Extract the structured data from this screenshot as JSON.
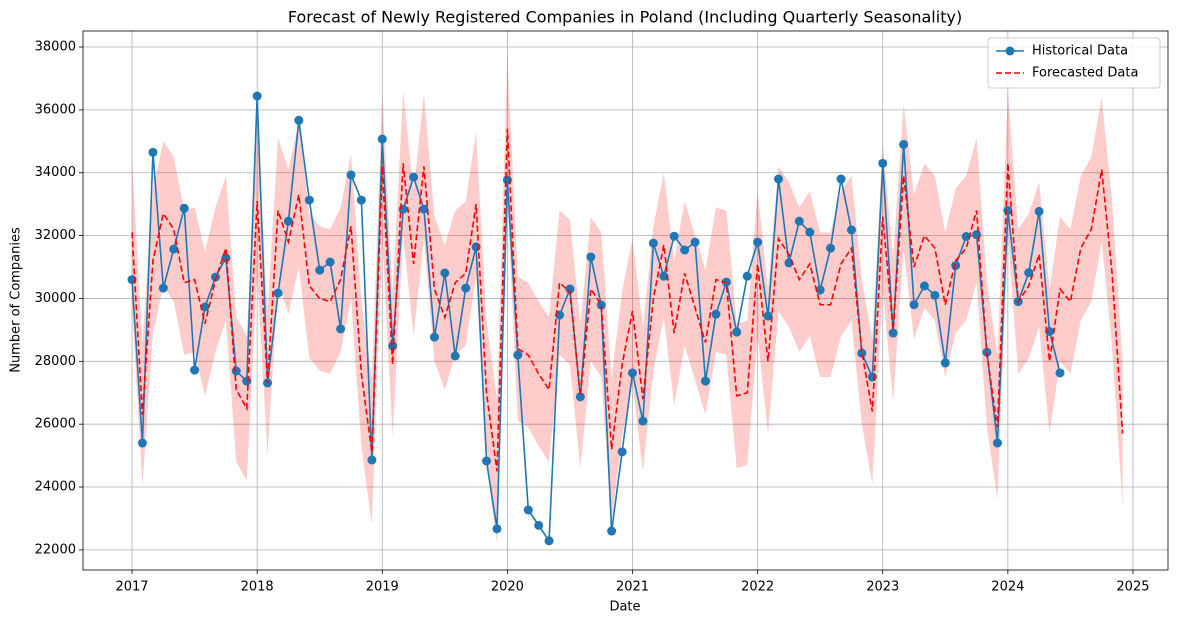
{
  "chart_data": {
    "type": "line",
    "title": "Forecast of Newly Registered Companies in Poland (Including Quarterly Seasonality)",
    "xlabel": "Date",
    "ylabel": "Number of Companies",
    "x": [
      2017,
      2017.083,
      2017.167,
      2017.25,
      2017.333,
      2017.417,
      2017.5,
      2017.583,
      2017.667,
      2017.75,
      2017.833,
      2017.917,
      2018,
      2018.083,
      2018.167,
      2018.25,
      2018.333,
      2018.417,
      2018.5,
      2018.583,
      2018.667,
      2018.75,
      2018.833,
      2018.917,
      2019,
      2019.083,
      2019.167,
      2019.25,
      2019.333,
      2019.417,
      2019.5,
      2019.583,
      2019.667,
      2019.75,
      2019.833,
      2019.917,
      2020,
      2020.083,
      2020.167,
      2020.25,
      2020.333,
      2020.417,
      2020.5,
      2020.583,
      2020.667,
      2020.75,
      2020.833,
      2020.917,
      2021,
      2021.083,
      2021.167,
      2021.25,
      2021.333,
      2021.417,
      2021.5,
      2021.583,
      2021.667,
      2021.75,
      2021.833,
      2021.917,
      2022,
      2022.083,
      2022.167,
      2022.25,
      2022.333,
      2022.417,
      2022.5,
      2022.583,
      2022.667,
      2022.75,
      2022.833,
      2022.917,
      2023,
      2023.083,
      2023.167,
      2023.25,
      2023.333,
      2023.417,
      2023.5,
      2023.583,
      2023.667,
      2023.75,
      2023.833,
      2023.917,
      2024,
      2024.083,
      2024.167,
      2024.25,
      2024.333,
      2024.417,
      2024.5,
      2024.583,
      2024.667,
      2024.75,
      2024.833,
      2024.917
    ],
    "series": [
      {
        "name": "Historical Data",
        "color": "#1f77b4",
        "linestyle": "solid",
        "marker": "o",
        "values": [
          30600,
          25400,
          34650,
          30330,
          31570,
          32870,
          27720,
          29730,
          30680,
          31290,
          27690,
          27370,
          36440,
          27310,
          30170,
          32460,
          35670,
          33130,
          30900,
          31160,
          29030,
          33930,
          33130,
          24860,
          35070,
          28490,
          32840,
          33860,
          32840,
          28770,
          30810,
          28170,
          30330,
          31640,
          24830,
          22670,
          33770,
          28200,
          23270,
          22780,
          22290,
          29470,
          30300,
          26870,
          31320,
          29790,
          22600,
          25120,
          27630,
          26100,
          31760,
          30710,
          31980,
          31540,
          31790,
          27370,
          29500,
          30520,
          28930,
          30710,
          31790,
          29440,
          33800,
          31130,
          32460,
          32110,
          30270,
          31600,
          33800,
          32180,
          28260,
          27500,
          34300,
          28900,
          34900,
          29800,
          30400,
          30100,
          27950,
          31050,
          31970,
          32030,
          28290,
          25400,
          32800,
          29900,
          30820,
          32770,
          28950,
          27630,
          null,
          null,
          null,
          null,
          null,
          null
        ]
      },
      {
        "name": "Forecasted Data",
        "color": "#ff0000",
        "linestyle": "dashed",
        "marker": "none",
        "values": [
          32100,
          26300,
          31200,
          32700,
          32200,
          30500,
          30600,
          29200,
          30600,
          31600,
          27100,
          26500,
          33100,
          27300,
          32800,
          31800,
          33300,
          30400,
          30000,
          29900,
          30600,
          32300,
          27600,
          25100,
          34200,
          27900,
          34300,
          31100,
          34200,
          30300,
          29400,
          30500,
          30800,
          33000,
          27000,
          24500,
          35400,
          28400,
          28200,
          27600,
          27100,
          30500,
          30200,
          26900,
          30300,
          29800,
          25200,
          27900,
          29600,
          26800,
          30000,
          31700,
          28900,
          30800,
          29700,
          28600,
          30600,
          30500,
          26900,
          27000,
          31100,
          28000,
          31900,
          31400,
          30600,
          31100,
          29800,
          29800,
          31100,
          31600,
          28300,
          26400,
          32600,
          29000,
          33900,
          31000,
          32000,
          31600,
          29800,
          31200,
          31600,
          32800,
          28200,
          25900,
          34300,
          29900,
          30400,
          31400,
          28000,
          30300,
          29900,
          31600,
          32200,
          34100,
          30800,
          25700
        ]
      }
    ],
    "band": {
      "color": "#ff0000",
      "opacity": 0.2,
      "lower": [
        29800,
        24000,
        28900,
        30400,
        29900,
        28200,
        28300,
        26900,
        28300,
        29300,
        24800,
        24200,
        30800,
        25000,
        30500,
        29500,
        31000,
        28100,
        27700,
        27600,
        28300,
        30000,
        25300,
        22800,
        31900,
        25600,
        32000,
        28800,
        31900,
        28000,
        27100,
        28200,
        28500,
        30700,
        24700,
        22200,
        33100,
        26100,
        25900,
        25300,
        24800,
        28200,
        27900,
        24600,
        28000,
        27500,
        22900,
        25600,
        27300,
        24500,
        27700,
        29400,
        26600,
        28500,
        27400,
        26300,
        28300,
        28200,
        24600,
        24700,
        28800,
        25700,
        29600,
        29100,
        28300,
        28800,
        27500,
        27500,
        28800,
        29300,
        26000,
        24100,
        30300,
        26700,
        31600,
        28700,
        29700,
        29300,
        27500,
        28900,
        29300,
        30500,
        25900,
        23600,
        32000,
        27600,
        28100,
        29100,
        25700,
        28000,
        27600,
        29300,
        29900,
        31800,
        28500,
        23400
      ],
      "upper": [
        34400,
        28600,
        33500,
        35000,
        34500,
        32800,
        32900,
        31500,
        32900,
        33900,
        29400,
        28800,
        35400,
        29600,
        35100,
        34100,
        35600,
        32700,
        32300,
        32200,
        32900,
        34600,
        29900,
        27400,
        36500,
        30200,
        36600,
        33400,
        36500,
        32600,
        31700,
        32800,
        33100,
        35300,
        29300,
        26800,
        37700,
        30700,
        30500,
        29900,
        29400,
        32800,
        32500,
        29200,
        32600,
        32100,
        27500,
        30200,
        31900,
        29100,
        32300,
        34000,
        31200,
        33100,
        32000,
        30900,
        32900,
        32800,
        29200,
        29300,
        33400,
        30300,
        34200,
        33700,
        32900,
        33400,
        32100,
        32100,
        33400,
        33900,
        30600,
        28700,
        34900,
        31300,
        36200,
        33300,
        34300,
        33900,
        32100,
        33500,
        33900,
        35100,
        30500,
        28200,
        36600,
        32200,
        32700,
        33700,
        30300,
        32600,
        32200,
        33900,
        34500,
        36400,
        33100,
        28000
      ]
    },
    "xlim": [
      2016.608,
      2025.28
    ],
    "xticks": [
      2017,
      2018,
      2019,
      2020,
      2021,
      2022,
      2023,
      2024,
      2025
    ],
    "ylim": [
      21360,
      38510
    ],
    "yticks": [
      22000,
      24000,
      26000,
      28000,
      30000,
      32000,
      34000,
      36000,
      38000
    ],
    "grid": true,
    "legend": "upper right"
  }
}
